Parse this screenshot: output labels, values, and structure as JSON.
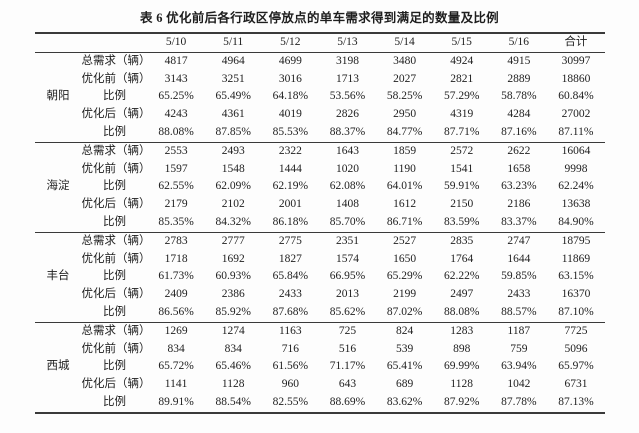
{
  "page": {
    "title": "表 6 优化前后各行政区停放点的单车需求得到满足的数量及比例"
  },
  "table": {
    "columns": [
      "5/10",
      "5/11",
      "5/12",
      "5/13",
      "5/14",
      "5/15",
      "5/16",
      "合计"
    ],
    "districts": [
      {
        "name": "朝阳",
        "rows": [
          {
            "label": "总需求（辆）",
            "values": [
              "4817",
              "4964",
              "4699",
              "3198",
              "3480",
              "4924",
              "4915",
              "30997"
            ]
          },
          {
            "label": "优化前（辆）",
            "values": [
              "3143",
              "3251",
              "3016",
              "1713",
              "2027",
              "2821",
              "2889",
              "18860"
            ]
          },
          {
            "label": "比例",
            "values": [
              "65.25%",
              "65.49%",
              "64.18%",
              "53.56%",
              "58.25%",
              "57.29%",
              "58.78%",
              "60.84%"
            ]
          },
          {
            "label": "优化后（辆）",
            "values": [
              "4243",
              "4361",
              "4019",
              "2826",
              "2950",
              "4319",
              "4284",
              "27002"
            ]
          },
          {
            "label": "比例",
            "values": [
              "88.08%",
              "87.85%",
              "85.53%",
              "88.37%",
              "84.77%",
              "87.71%",
              "87.16%",
              "87.11%"
            ]
          }
        ]
      },
      {
        "name": "海淀",
        "rows": [
          {
            "label": "总需求（辆）",
            "values": [
              "2553",
              "2493",
              "2322",
              "1643",
              "1859",
              "2572",
              "2622",
              "16064"
            ]
          },
          {
            "label": "优化前（辆）",
            "values": [
              "1597",
              "1548",
              "1444",
              "1020",
              "1190",
              "1541",
              "1658",
              "9998"
            ]
          },
          {
            "label": "比例",
            "values": [
              "62.55%",
              "62.09%",
              "62.19%",
              "62.08%",
              "64.01%",
              "59.91%",
              "63.23%",
              "62.24%"
            ]
          },
          {
            "label": "优化后（辆）",
            "values": [
              "2179",
              "2102",
              "2001",
              "1408",
              "1612",
              "2150",
              "2186",
              "13638"
            ]
          },
          {
            "label": "比例",
            "values": [
              "85.35%",
              "84.32%",
              "86.18%",
              "85.70%",
              "86.71%",
              "83.59%",
              "83.37%",
              "84.90%"
            ]
          }
        ]
      },
      {
        "name": "丰台",
        "rows": [
          {
            "label": "总需求（辆）",
            "values": [
              "2783",
              "2777",
              "2775",
              "2351",
              "2527",
              "2835",
              "2747",
              "18795"
            ]
          },
          {
            "label": "优化前（辆）",
            "values": [
              "1718",
              "1692",
              "1827",
              "1574",
              "1650",
              "1764",
              "1644",
              "11869"
            ]
          },
          {
            "label": "比例",
            "values": [
              "61.73%",
              "60.93%",
              "65.84%",
              "66.95%",
              "65.29%",
              "62.22%",
              "59.85%",
              "63.15%"
            ]
          },
          {
            "label": "优化后（辆）",
            "values": [
              "2409",
              "2386",
              "2433",
              "2013",
              "2199",
              "2497",
              "2433",
              "16370"
            ]
          },
          {
            "label": "比例",
            "values": [
              "86.56%",
              "85.92%",
              "87.68%",
              "85.62%",
              "87.02%",
              "88.08%",
              "88.57%",
              "87.10%"
            ]
          }
        ]
      },
      {
        "name": "西城",
        "rows": [
          {
            "label": "总需求（辆）",
            "values": [
              "1269",
              "1274",
              "1163",
              "725",
              "824",
              "1283",
              "1187",
              "7725"
            ]
          },
          {
            "label": "优化前（辆）",
            "values": [
              "834",
              "834",
              "716",
              "516",
              "539",
              "898",
              "759",
              "5096"
            ]
          },
          {
            "label": "比例",
            "values": [
              "65.72%",
              "65.46%",
              "61.56%",
              "71.17%",
              "65.41%",
              "69.99%",
              "63.94%",
              "65.97%"
            ]
          },
          {
            "label": "优化后（辆）",
            "values": [
              "1141",
              "1128",
              "960",
              "643",
              "689",
              "1128",
              "1042",
              "6731"
            ]
          },
          {
            "label": "比例",
            "values": [
              "89.91%",
              "88.54%",
              "82.55%",
              "88.69%",
              "83.62%",
              "87.92%",
              "87.78%",
              "87.13%"
            ]
          }
        ]
      }
    ]
  }
}
